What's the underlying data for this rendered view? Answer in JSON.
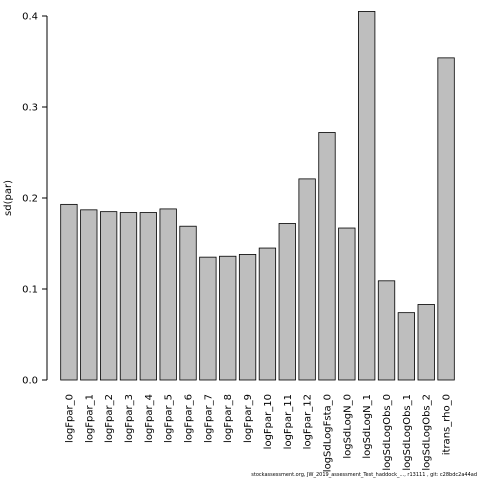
{
  "chart_data": {
    "type": "bar",
    "categories": [
      "logFpar_0",
      "logFpar_1",
      "logFpar_2",
      "logFpar_3",
      "logFpar_4",
      "logFpar_5",
      "logFpar_6",
      "logFpar_7",
      "logFpar_8",
      "logFpar_9",
      "logFpar_10",
      "logFpar_11",
      "logFpar_12",
      "logSdLogFsta_0",
      "logSdLogN_0",
      "logSdLogN_1",
      "logSdLogObs_0",
      "logSdLogObs_1",
      "logSdLogObs_2",
      "itrans_rho_0"
    ],
    "values": [
      0.193,
      0.187,
      0.185,
      0.184,
      0.184,
      0.188,
      0.169,
      0.135,
      0.136,
      0.138,
      0.145,
      0.172,
      0.221,
      0.272,
      0.167,
      0.405,
      0.109,
      0.074,
      0.083,
      0.354
    ],
    "ylabel": "sd(par)",
    "xlabel": "",
    "title": "",
    "ylim": [
      0,
      0.4
    ],
    "yticks": [
      "0.0",
      "0.1",
      "0.2",
      "0.3",
      "0.4"
    ],
    "ytick_values": [
      0,
      0.1,
      0.2,
      0.3,
      0.4
    ],
    "bar_color": "#bebebe",
    "grid": false
  },
  "footer": "stockassessment.org, JW_2019_assessment_Test_haddock_..., r13111 , git: c28bdc2a44ad"
}
